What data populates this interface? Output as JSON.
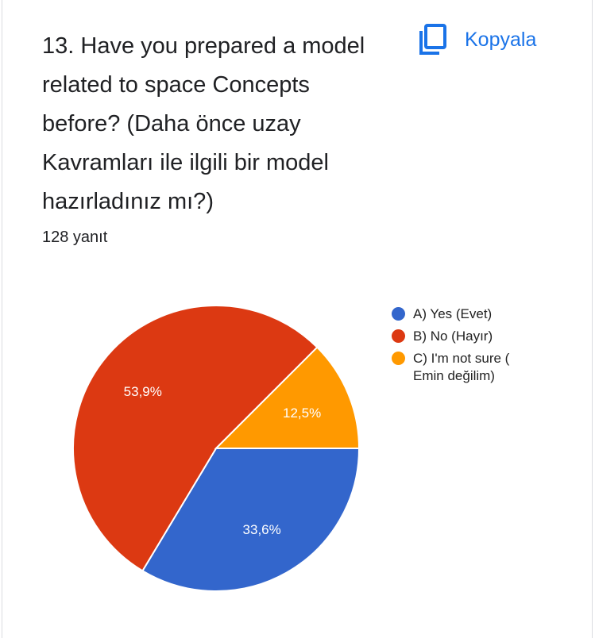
{
  "question": {
    "title": "13. Have you prepared a model related to space Concepts before? (Daha önce uzay Kavramları ile ilgili bir model hazırladınız mı?)",
    "response_count": "128 yanıt"
  },
  "copy_button": {
    "label": "Kopyala",
    "icon": "copy-icon"
  },
  "chart_data": {
    "type": "pie",
    "start_angle_deg": 90,
    "slices": [
      {
        "name": "A) Yes (Evet)",
        "value": 33.6,
        "label": "33,6%",
        "color": "#3366cc"
      },
      {
        "name": "B) No (Hayır)",
        "value": 53.9,
        "label": "53,9%",
        "color": "#dc3912"
      },
      {
        "name": "C) I'm not sure ( Emin değilim)",
        "value": 12.5,
        "label": "12,5%",
        "color": "#ff9900"
      }
    ],
    "legend_position": "right"
  }
}
